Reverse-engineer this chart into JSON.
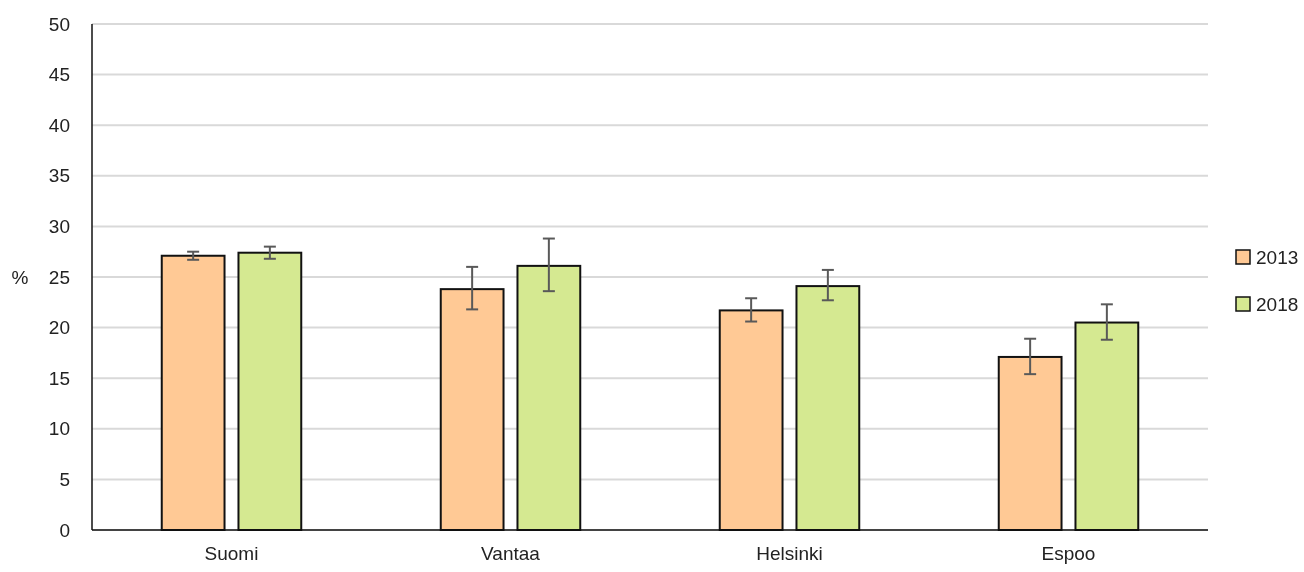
{
  "chart_data": {
    "type": "bar",
    "ylabel": "%",
    "categories": [
      "Suomi",
      "Vantaa",
      "Helsinki",
      "Espoo"
    ],
    "series": [
      {
        "name": "2013",
        "color": "#ffc995",
        "values": [
          27.1,
          23.8,
          21.7,
          17.1
        ],
        "errors": [
          [
            26.7,
            27.5
          ],
          [
            21.8,
            26.0
          ],
          [
            20.6,
            22.9
          ],
          [
            15.4,
            18.9
          ]
        ]
      },
      {
        "name": "2018",
        "color": "#d5e991",
        "values": [
          27.4,
          26.1,
          24.1,
          20.5
        ],
        "errors": [
          [
            26.8,
            28.0
          ],
          [
            23.6,
            28.8
          ],
          [
            22.7,
            25.7
          ],
          [
            18.8,
            22.3
          ]
        ]
      }
    ],
    "ylim": [
      0,
      50
    ],
    "yticks": [
      0,
      5,
      10,
      15,
      20,
      25,
      30,
      35,
      40,
      45,
      50
    ],
    "grid": "y",
    "legend": "right"
  }
}
